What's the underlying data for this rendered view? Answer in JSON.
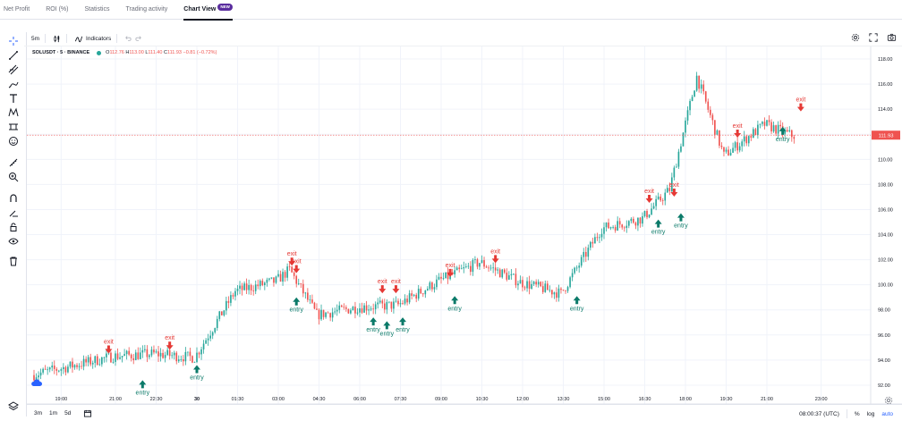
{
  "tabs": [
    {
      "label": "Net Profit",
      "active": false
    },
    {
      "label": "ROI (%)",
      "active": false
    },
    {
      "label": "Statistics",
      "active": false
    },
    {
      "label": "Trading activity",
      "active": false
    },
    {
      "label": "Chart View",
      "active": true,
      "badge": "NEW"
    }
  ],
  "toolbar": {
    "interval": "5m",
    "indicators_label": "Indicators"
  },
  "legend": {
    "symbol": "SOLUSDT · 5 · BINANCE",
    "open_label": "O",
    "open": "112.76",
    "high_label": "H",
    "high": "113.00",
    "low_label": "L",
    "low": "111.40",
    "close_label": "C",
    "close": "111.93",
    "change": "−0.81 (−0.72%)"
  },
  "price_axis": {
    "labels": [
      "118.00",
      "116.00",
      "114.00",
      "112.00",
      "110.00",
      "108.00",
      "106.00",
      "104.00",
      "102.00",
      "100.00",
      "98.00",
      "96.00",
      "94.00",
      "92.00"
    ],
    "current_price": "111.93",
    "current_color": "#ef5350"
  },
  "time_axis": {
    "labels": [
      "19:00",
      "21:00",
      "22:30",
      "30",
      "01:30",
      "03:00",
      "04:30",
      "06:00",
      "07:30",
      "09:00",
      "10:30",
      "12:00",
      "13:30",
      "15:00",
      "16:30",
      "18:00",
      "19:30",
      "21:00",
      "23:00"
    ]
  },
  "colors": {
    "up": "#26a69a",
    "down": "#ef5350",
    "entry": "#0b7a69",
    "exit": "#e53935"
  },
  "markers": {
    "entry_label": "entry",
    "exit_label": "exit"
  },
  "chart_data": {
    "type": "candlestick",
    "title": "SOLUSDT · 5 · BINANCE",
    "ylim": [
      90.5,
      119.0
    ],
    "key_points": [
      {
        "time": "18:00",
        "price": 92.8
      },
      {
        "time": "21:00",
        "price": 94.3
      },
      {
        "time": "22:30",
        "price": 94.5
      },
      {
        "time": "30",
        "price": 94.2
      },
      {
        "time": "01:30",
        "price": 99.5
      },
      {
        "time": "03:00",
        "price": 100.3
      },
      {
        "time": "03:30",
        "price": 101.2
      },
      {
        "time": "04:30",
        "price": 97.6
      },
      {
        "time": "06:00",
        "price": 98.2
      },
      {
        "time": "07:30",
        "price": 98.4
      },
      {
        "time": "09:00",
        "price": 100.3
      },
      {
        "time": "10:30",
        "price": 101.8
      },
      {
        "time": "12:00",
        "price": 100.2
      },
      {
        "time": "13:30",
        "price": 99.3
      },
      {
        "time": "15:00",
        "price": 104.5
      },
      {
        "time": "16:30",
        "price": 105.3
      },
      {
        "time": "17:30",
        "price": 107.6
      },
      {
        "time": "18:30",
        "price": 116.6
      },
      {
        "time": "19:30",
        "price": 110.3
      },
      {
        "time": "21:00",
        "price": 112.8
      },
      {
        "time": "22:00",
        "price": 111.9
      }
    ],
    "trades": [
      {
        "type": "exit",
        "time": "20:45",
        "price": 94.6
      },
      {
        "type": "entry",
        "time": "22:00",
        "price": 92.4
      },
      {
        "type": "exit",
        "time": "23:00",
        "price": 94.9
      },
      {
        "type": "entry",
        "time": "00:00",
        "price": 93.6
      },
      {
        "type": "exit",
        "time": "03:30",
        "price": 101.6
      },
      {
        "type": "exit",
        "time": "03:40",
        "price": 101.0
      },
      {
        "type": "entry",
        "time": "03:40",
        "price": 99.0
      },
      {
        "type": "entry",
        "time": "06:30",
        "price": 97.4
      },
      {
        "type": "exit",
        "time": "06:50",
        "price": 99.4
      },
      {
        "type": "entry",
        "time": "07:00",
        "price": 97.1
      },
      {
        "type": "exit",
        "time": "07:20",
        "price": 99.4
      },
      {
        "type": "entry",
        "time": "07:35",
        "price": 97.4
      },
      {
        "type": "exit",
        "time": "09:20",
        "price": 100.7
      },
      {
        "type": "entry",
        "time": "09:30",
        "price": 99.1
      },
      {
        "type": "exit",
        "time": "11:00",
        "price": 101.8
      },
      {
        "type": "entry",
        "time": "14:00",
        "price": 99.1
      },
      {
        "type": "exit",
        "time": "16:40",
        "price": 106.6
      },
      {
        "type": "entry",
        "time": "17:00",
        "price": 105.2
      },
      {
        "type": "exit",
        "time": "17:35",
        "price": 107.1
      },
      {
        "type": "entry",
        "time": "17:50",
        "price": 105.7
      },
      {
        "type": "exit",
        "time": "19:55",
        "price": 111.8
      },
      {
        "type": "entry",
        "time": "21:35",
        "price": 112.6
      },
      {
        "type": "exit",
        "time": "22:15",
        "price": 113.9
      }
    ]
  },
  "bottom": {
    "ranges": [
      "3m",
      "1m",
      "5d"
    ],
    "clock": "08:00:37 (UTC)",
    "pct": "%",
    "log": "log",
    "auto": "auto"
  }
}
